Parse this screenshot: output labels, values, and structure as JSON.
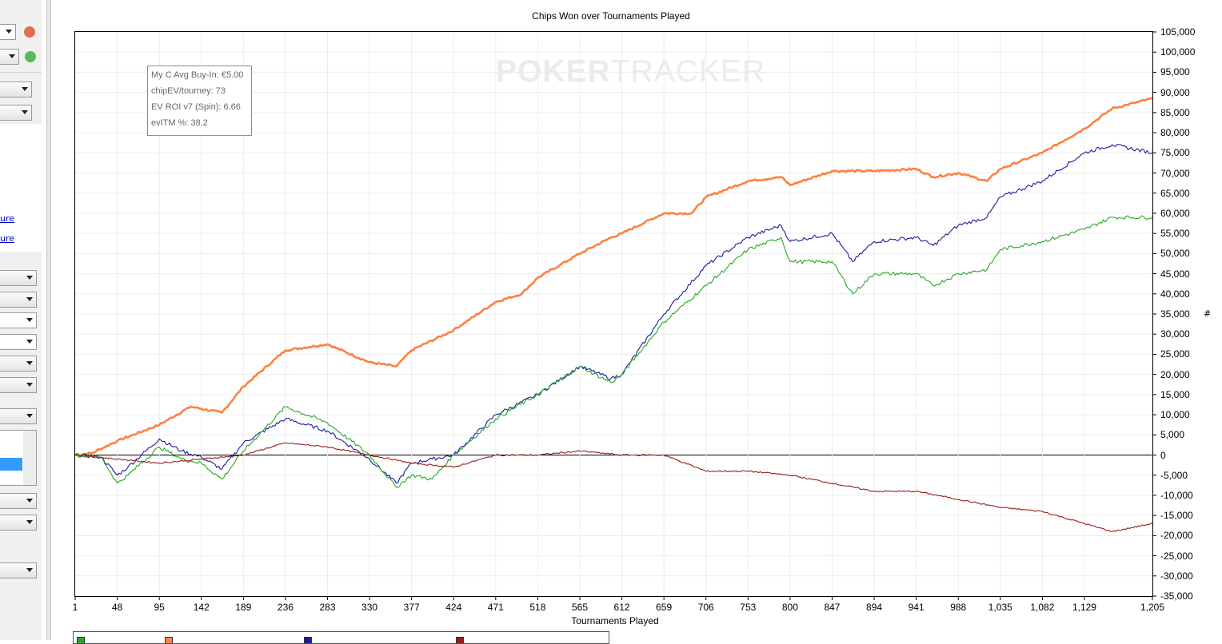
{
  "chart_data": {
    "type": "line",
    "title": "Chips Won over Tournaments Played",
    "xlabel": "Tournaments Played",
    "ylabel": "#",
    "xlim": [
      1,
      1205
    ],
    "ylim": [
      -35000,
      105000
    ],
    "y_ticks": [
      "105,000",
      "100,000",
      "95,000",
      "90,000",
      "85,000",
      "80,000",
      "75,000",
      "70,000",
      "65,000",
      "60,000",
      "55,000",
      "50,000",
      "45,000",
      "40,000",
      "35,000",
      "30,000",
      "25,000",
      "20,000",
      "15,000",
      "10,000",
      "5,000",
      "0",
      "-5,000",
      "-10,000",
      "-15,000",
      "-20,000",
      "-25,000",
      "-30,000",
      "-35,000"
    ],
    "x_ticks": [
      "1",
      "48",
      "95",
      "142",
      "189",
      "236",
      "283",
      "330",
      "377",
      "424",
      "471",
      "518",
      "565",
      "612",
      "659",
      "706",
      "753",
      "800",
      "847",
      "894",
      "941",
      "988",
      "1,035",
      "1,082",
      "1,129",
      "1,205"
    ],
    "grid": true,
    "series": [
      {
        "color": "#ff8040",
        "x": [
          1,
          20,
          48,
          95,
          130,
          165,
          189,
          236,
          283,
          330,
          360,
          377,
          424,
          471,
          500,
          518,
          565,
          600,
          612,
          659,
          690,
          706,
          753,
          790,
          800,
          847,
          894,
          941,
          960,
          988,
          1020,
          1035,
          1082,
          1129,
          1160,
          1205
        ],
        "y": [
          0,
          500,
          3500,
          7500,
          12000,
          10500,
          17000,
          26000,
          27500,
          23000,
          22000,
          26000,
          31000,
          38000,
          40000,
          44000,
          50000,
          54000,
          55000,
          60000,
          60000,
          64000,
          68000,
          69000,
          67000,
          70500,
          70500,
          71000,
          69000,
          70000,
          68000,
          71000,
          75000,
          81000,
          86000,
          88500
        ]
      },
      {
        "color": "#1a1aa0",
        "x": [
          1,
          30,
          48,
          60,
          95,
          120,
          142,
          165,
          189,
          236,
          283,
          330,
          360,
          377,
          400,
          424,
          471,
          518,
          565,
          600,
          612,
          659,
          706,
          753,
          790,
          800,
          847,
          870,
          894,
          941,
          960,
          988,
          1020,
          1035,
          1082,
          1129,
          1160,
          1205
        ],
        "y": [
          0,
          -500,
          -5000,
          -3000,
          4000,
          1000,
          -500,
          -3500,
          3000,
          9000,
          6000,
          -1000,
          -7000,
          -2000,
          -1000,
          0,
          10000,
          15000,
          22000,
          19000,
          20000,
          35000,
          47000,
          54000,
          57000,
          53000,
          55000,
          48000,
          53000,
          54000,
          52000,
          57000,
          59000,
          64000,
          68000,
          75000,
          77000,
          75000
        ]
      },
      {
        "color": "#22aa22",
        "x": [
          1,
          30,
          48,
          60,
          95,
          120,
          142,
          165,
          189,
          236,
          283,
          330,
          360,
          377,
          400,
          424,
          471,
          518,
          565,
          600,
          612,
          659,
          706,
          753,
          790,
          800,
          847,
          870,
          894,
          941,
          960,
          988,
          1020,
          1035,
          1082,
          1129,
          1160,
          1205
        ],
        "y": [
          0,
          -500,
          -7000,
          -5000,
          2000,
          -1000,
          -2000,
          -6000,
          1000,
          12000,
          8000,
          0,
          -8000,
          -5000,
          -6000,
          0,
          9000,
          15000,
          22000,
          18000,
          20000,
          33000,
          42000,
          51000,
          54000,
          48000,
          48000,
          40000,
          45000,
          45000,
          42000,
          45000,
          46000,
          51000,
          53000,
          56000,
          59000,
          59000
        ]
      },
      {
        "color": "#9b1a1a",
        "x": [
          1,
          48,
          95,
          142,
          189,
          236,
          283,
          330,
          377,
          424,
          471,
          518,
          565,
          612,
          659,
          706,
          753,
          800,
          847,
          894,
          941,
          988,
          1035,
          1082,
          1129,
          1160,
          1205
        ],
        "y": [
          0,
          -1000,
          -2000,
          -1000,
          0,
          3000,
          2000,
          0,
          -2000,
          -3000,
          0,
          0,
          1000,
          0,
          0,
          -4000,
          -4000,
          -5000,
          -7000,
          -9000,
          -9000,
          -11000,
          -13000,
          -14000,
          -17000,
          -19000,
          -17000
        ]
      }
    ]
  },
  "tooltip": {
    "line1": "My C Avg Buy-In: €5.00",
    "line2": "chipEV/tourney: 73",
    "line3": "EV ROI v7 (Spin): 6.66",
    "line4": "evITM %: 38.2"
  },
  "watermark": {
    "part1": "POKER",
    "part2": "TRACKER"
  },
  "sidebar": {
    "link1": "ure",
    "link2": "ure"
  }
}
